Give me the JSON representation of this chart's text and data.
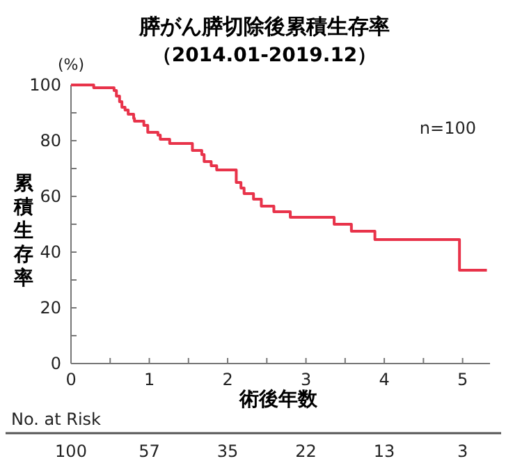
{
  "chart_data": {
    "type": "step",
    "title": "膵がん膵切除後累積生存率",
    "subtitle": "（2014.01-2019.12）",
    "xlabel": "術後年数",
    "ylabel": "累積生存率",
    "x": [
      0,
      0.29,
      0.55,
      0.58,
      0.62,
      0.65,
      0.69,
      0.73,
      0.8,
      0.81,
      0.93,
      0.98,
      1.11,
      1.14,
      1.26,
      1.55,
      1.67,
      1.7,
      1.79,
      1.86,
      2.11,
      2.17,
      2.21,
      2.33,
      2.43,
      2.59,
      2.8,
      3.36,
      3.58,
      3.88,
      4.96,
      5.31
    ],
    "series": [
      {
        "color": "#e8334a",
        "values": [
          100,
          99,
          98,
          96,
          94,
          92,
          91,
          89.5,
          88,
          87,
          85.5,
          83,
          82,
          80.5,
          79,
          76.5,
          75,
          72.5,
          71,
          69.5,
          65,
          63,
          61,
          59,
          56.5,
          54.5,
          52.5,
          50,
          47.5,
          44.5,
          33.5,
          33.5
        ]
      }
    ],
    "xlim": [
      0,
      5.35
    ],
    "xticks": [
      0,
      {
        "value": 0.5,
        "label": null
      },
      1,
      {
        "value": 1.5,
        "label": null
      },
      2,
      {
        "value": 2.5,
        "label": null
      },
      3,
      {
        "value": 3.5,
        "label": null
      },
      4,
      {
        "value": 4.5,
        "label": null
      },
      5
    ],
    "ylim": [
      0,
      100
    ],
    "yticks": [
      0,
      {
        "value": 10,
        "label": null
      },
      20,
      {
        "value": 30,
        "label": null
      },
      40,
      {
        "value": 50,
        "label": null
      },
      60,
      {
        "value": 70,
        "label": null
      },
      80,
      {
        "value": 90,
        "label": null
      },
      100
    ],
    "grid": false,
    "line_style": "solid",
    "marker": "none",
    "annotations": [
      "(%)",
      "n=100",
      "No. at Risk",
      "100",
      "57",
      "35",
      "22",
      "13",
      "3"
    ]
  }
}
